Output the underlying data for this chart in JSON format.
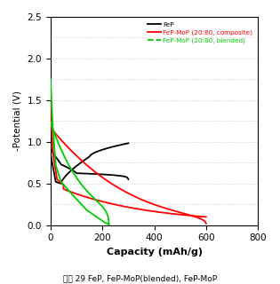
{
  "xlabel": "Capacity (mAh/g)",
  "ylabel": "-Potential (V)",
  "xlim": [
    0,
    800
  ],
  "ylim": [
    0.0,
    2.5
  ],
  "xticks": [
    0,
    200,
    400,
    600,
    800
  ],
  "yticks": [
    0.0,
    0.5,
    1.0,
    1.5,
    2.0,
    2.5
  ],
  "grid_y": [
    0.0,
    0.25,
    0.5,
    0.75,
    1.0,
    1.25,
    1.5,
    1.75,
    2.0,
    2.25,
    2.5
  ],
  "grid_color": "#aaaaaa",
  "caption": "그림 29 FeP, FeP-MoP(blended), FeP-MoP",
  "legend": [
    {
      "label": "FeP",
      "color": "#000000",
      "linestyle": "-"
    },
    {
      "label": "FeP-MoP (20:80, composite)",
      "color": "#ff0000",
      "linestyle": "-"
    },
    {
      "label": "FeP-MoP (20:80, blended)",
      "color": "#00cc00",
      "linestyle": "--"
    }
  ],
  "background": "#ffffff",
  "fep_color": "#000000",
  "composite_color": "#ff0000",
  "blended_color": "#00cc00"
}
